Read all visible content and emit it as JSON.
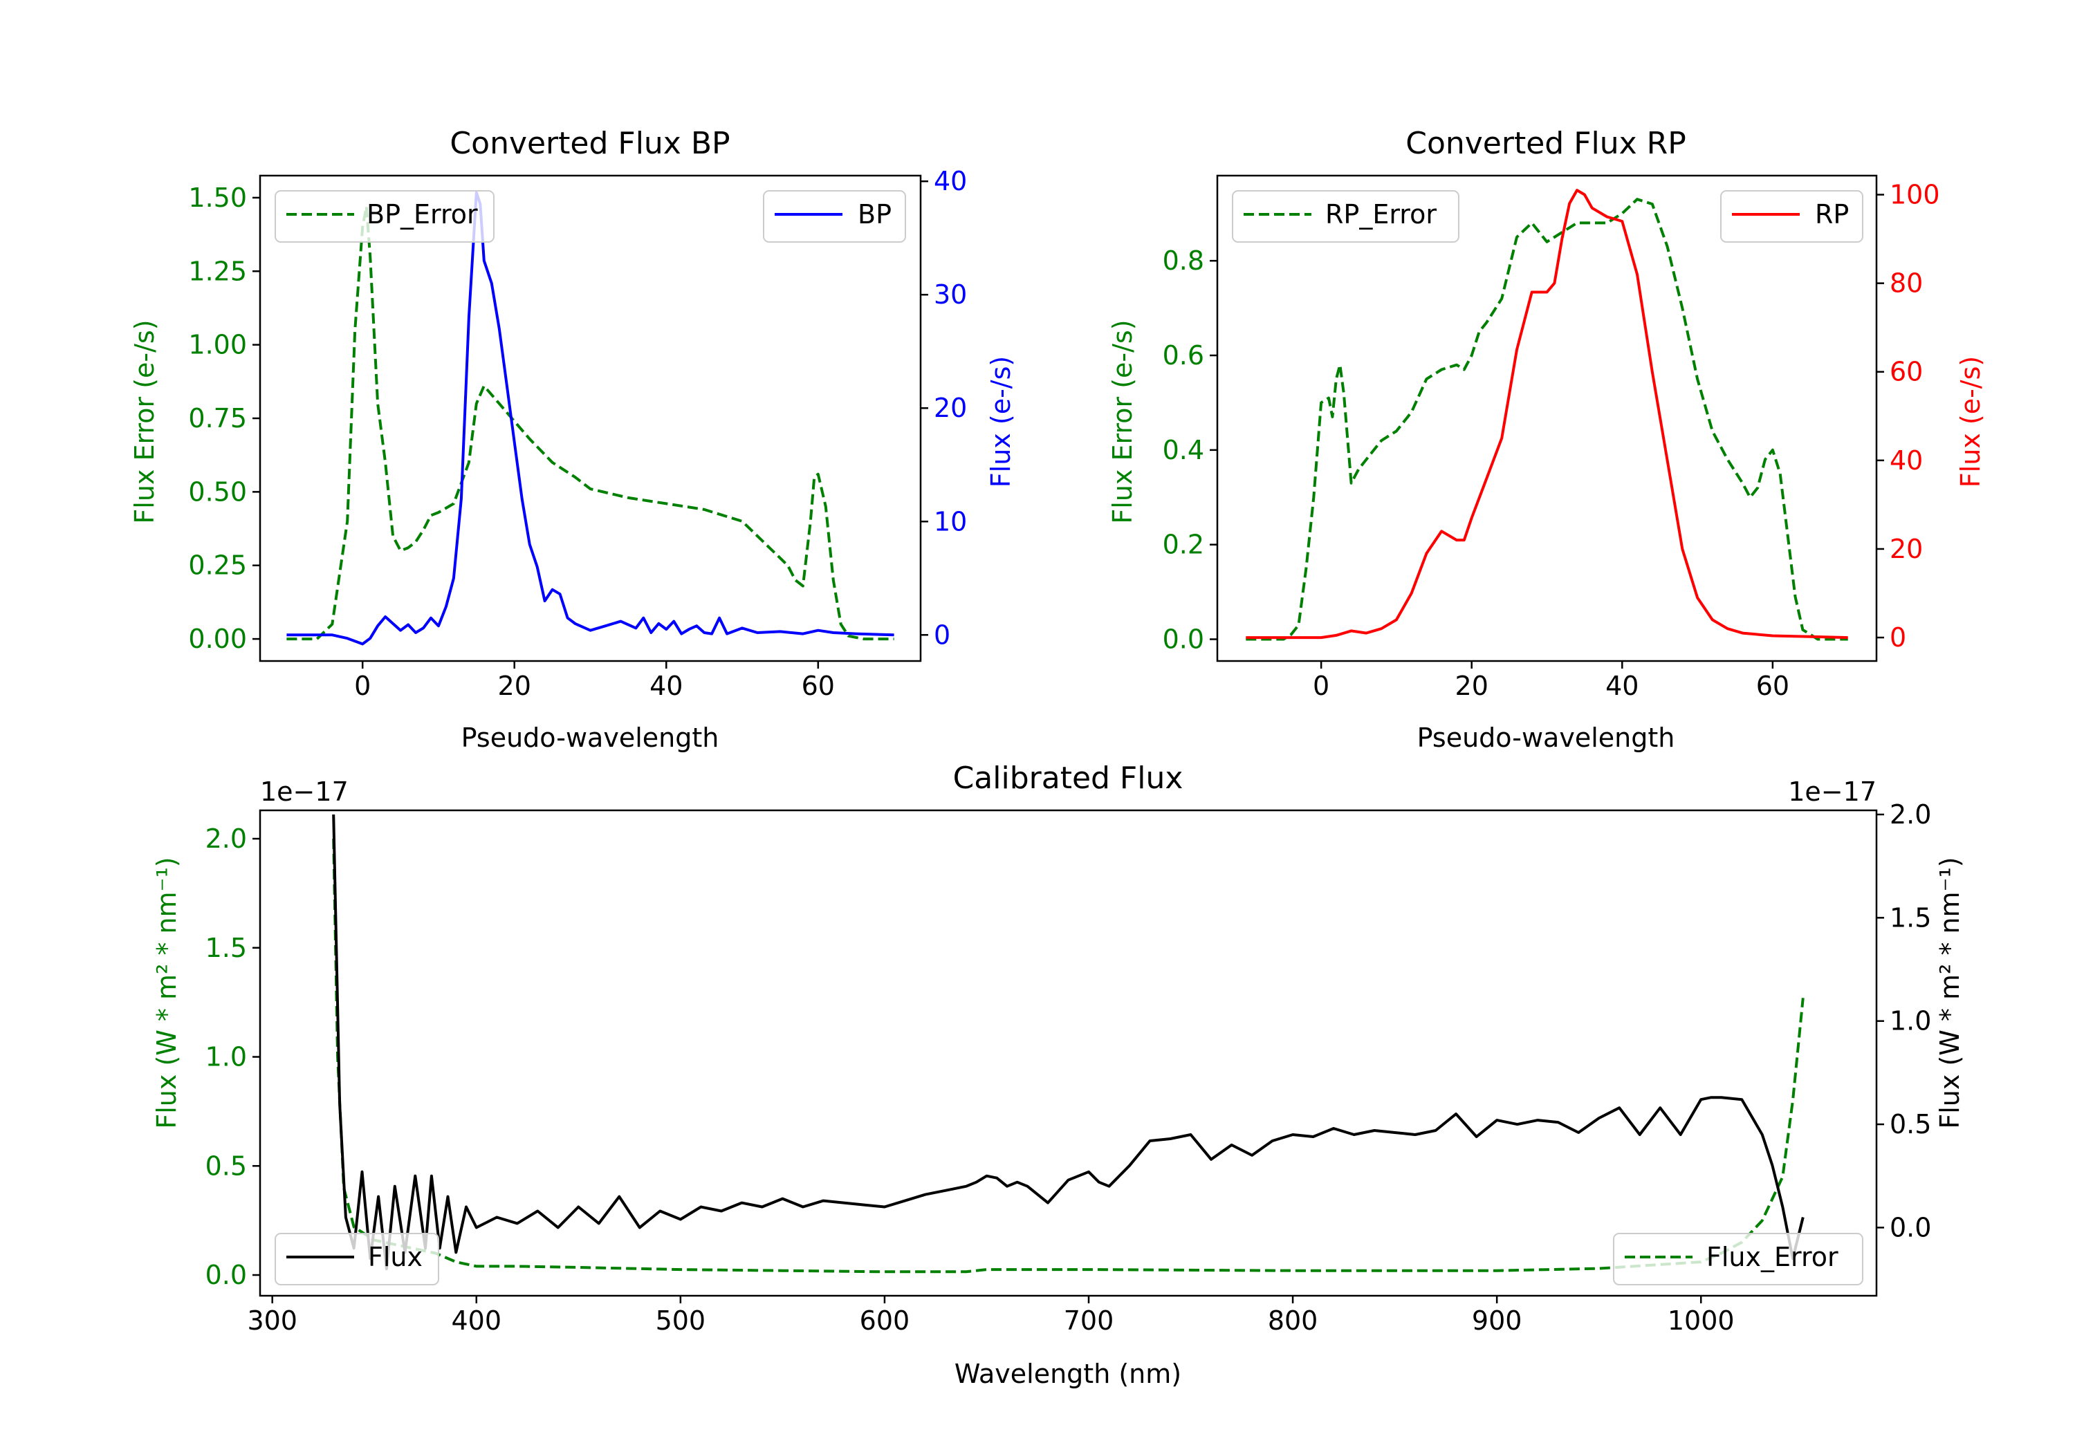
{
  "chart_data": [
    {
      "id": "bp",
      "type": "line",
      "title": "Converted Flux BP",
      "xlabel": "Pseudo-wavelength",
      "xlim": [
        -13.5,
        73.5
      ],
      "xticks": [
        0,
        20,
        40,
        60
      ],
      "left_axis": {
        "label": "Flux Error (e-/s)",
        "color": "#008000",
        "ylim": [
          -0.075,
          1.575
        ],
        "ticks": [
          0.0,
          0.25,
          0.5,
          0.75,
          1.0,
          1.25,
          1.5
        ],
        "tick_labels": [
          "0.00",
          "0.25",
          "0.50",
          "0.75",
          "1.00",
          "1.25",
          "1.50"
        ]
      },
      "right_axis": {
        "label": "Flux (e-/s)",
        "color": "#0000ff",
        "ylim": [
          -2.3,
          40.5
        ],
        "ticks": [
          0,
          10,
          20,
          30,
          40
        ],
        "tick_labels": [
          "0",
          "10",
          "20",
          "30",
          "40"
        ]
      },
      "series": [
        {
          "name": "BP_Error",
          "axis": "left",
          "color": "#008000",
          "style": "dashed",
          "x": [
            -10,
            -6,
            -4,
            -2,
            -1,
            0,
            0.5,
            1,
            2,
            3,
            4,
            5,
            6,
            7,
            8,
            9,
            10,
            12,
            14,
            15,
            16,
            18,
            20,
            22,
            25,
            28,
            30,
            35,
            40,
            45,
            50,
            54,
            56,
            57,
            58,
            59,
            59.5,
            60,
            61,
            62,
            63,
            64,
            66,
            70
          ],
          "values": [
            0.0,
            0.0,
            0.05,
            0.4,
            1.05,
            1.4,
            1.47,
            1.3,
            0.8,
            0.6,
            0.35,
            0.3,
            0.31,
            0.33,
            0.37,
            0.42,
            0.43,
            0.46,
            0.6,
            0.8,
            0.86,
            0.8,
            0.74,
            0.68,
            0.6,
            0.55,
            0.51,
            0.48,
            0.46,
            0.44,
            0.4,
            0.3,
            0.25,
            0.2,
            0.18,
            0.4,
            0.55,
            0.56,
            0.45,
            0.2,
            0.05,
            0.01,
            0.0,
            0.0
          ]
        },
        {
          "name": "BP",
          "axis": "right",
          "color": "#0000ff",
          "style": "solid",
          "x": [
            -10,
            -4,
            -2,
            0,
            1,
            2,
            3,
            4,
            5,
            6,
            7,
            8,
            9,
            10,
            11,
            12,
            13,
            14,
            15,
            15.5,
            16,
            17,
            18,
            19,
            20,
            21,
            22,
            23,
            24,
            25,
            26,
            27,
            28,
            30,
            32,
            34,
            36,
            37,
            38,
            39,
            40,
            41,
            42,
            43,
            44,
            45,
            46,
            47,
            48,
            50,
            52,
            55,
            58,
            60,
            62,
            65,
            70
          ],
          "values": [
            0,
            0,
            -0.3,
            -0.8,
            -0.3,
            0.8,
            1.6,
            1.0,
            0.4,
            0.9,
            0.2,
            0.6,
            1.5,
            0.8,
            2.5,
            5,
            12,
            28,
            39,
            38,
            33,
            31,
            27,
            22,
            17,
            12,
            8,
            6,
            3,
            4,
            3.6,
            1.5,
            1,
            0.4,
            0.8,
            1.2,
            0.6,
            1.5,
            0.2,
            1.0,
            0.5,
            1.2,
            0.1,
            0.5,
            0.8,
            0.2,
            0.1,
            1.5,
            0.1,
            0.6,
            0.2,
            0.3,
            0.1,
            0.4,
            0.2,
            0.1,
            0
          ]
        }
      ],
      "legends": [
        {
          "label": "BP_Error",
          "position": "upper left"
        },
        {
          "label": "BP",
          "position": "upper right"
        }
      ]
    },
    {
      "id": "rp",
      "type": "line",
      "title": "Converted Flux RP",
      "xlabel": "Pseudo-wavelength",
      "xlim": [
        -13.8,
        73.8
      ],
      "xticks": [
        0,
        20,
        40,
        60
      ],
      "left_axis": {
        "label": "Flux Error (e-/s)",
        "color": "#008000",
        "ylim": [
          -0.046,
          0.98
        ],
        "ticks": [
          0.0,
          0.2,
          0.4,
          0.6,
          0.8
        ],
        "tick_labels": [
          "0.0",
          "0.2",
          "0.4",
          "0.6",
          "0.8"
        ]
      },
      "right_axis": {
        "label": "Flux (e-/s)",
        "color": "#ff0000",
        "ylim": [
          -5.3,
          104.3
        ],
        "ticks": [
          0,
          20,
          40,
          60,
          80,
          100
        ],
        "tick_labels": [
          "0",
          "20",
          "40",
          "60",
          "80",
          "100"
        ]
      },
      "series": [
        {
          "name": "RP_Error",
          "axis": "left",
          "color": "#008000",
          "style": "dashed",
          "x": [
            -10,
            -5,
            -4,
            -3,
            -2,
            -1,
            0,
            1,
            1.5,
            2,
            2.5,
            3,
            4,
            5,
            6,
            7,
            8,
            9,
            10,
            12,
            14,
            16,
            18,
            19,
            20,
            21,
            22,
            24,
            26,
            28,
            30,
            32,
            34,
            36,
            38,
            40,
            42,
            44,
            46,
            48,
            50,
            52,
            54,
            56,
            57,
            58,
            59,
            60,
            61,
            62,
            63,
            64,
            66,
            70
          ],
          "values": [
            0.0,
            0.0,
            0.01,
            0.03,
            0.15,
            0.3,
            0.5,
            0.51,
            0.47,
            0.55,
            0.58,
            0.52,
            0.33,
            0.36,
            0.38,
            0.4,
            0.42,
            0.43,
            0.44,
            0.48,
            0.55,
            0.57,
            0.58,
            0.57,
            0.6,
            0.65,
            0.67,
            0.72,
            0.85,
            0.88,
            0.84,
            0.86,
            0.88,
            0.88,
            0.88,
            0.9,
            0.93,
            0.92,
            0.83,
            0.7,
            0.55,
            0.44,
            0.38,
            0.33,
            0.3,
            0.32,
            0.38,
            0.4,
            0.35,
            0.22,
            0.09,
            0.02,
            0.0,
            0.0
          ]
        },
        {
          "name": "RP",
          "axis": "right",
          "color": "#ff0000",
          "style": "solid",
          "x": [
            -10,
            0,
            2,
            4,
            6,
            8,
            10,
            12,
            14,
            16,
            18,
            19,
            20,
            22,
            24,
            26,
            28,
            30,
            31,
            32,
            33,
            34,
            35,
            36,
            38,
            40,
            42,
            44,
            46,
            48,
            50,
            52,
            54,
            56,
            60,
            65,
            70
          ],
          "values": [
            0,
            0,
            0.5,
            1.5,
            1,
            2,
            4,
            10,
            19,
            24,
            22,
            22,
            27,
            36,
            45,
            65,
            78,
            78,
            80,
            90,
            98,
            101,
            100,
            97,
            95,
            94,
            82,
            60,
            40,
            20,
            9,
            4,
            2,
            1,
            0.4,
            0.2,
            0
          ]
        }
      ],
      "legends": [
        {
          "label": "RP_Error",
          "position": "upper left"
        },
        {
          "label": "RP",
          "position": "upper right"
        }
      ]
    },
    {
      "id": "cal",
      "type": "line",
      "title": "Calibrated Flux",
      "xlabel": "Wavelength (nm)",
      "xlim": [
        294,
        1086
      ],
      "xticks": [
        300,
        400,
        500,
        600,
        700,
        800,
        900,
        1000
      ],
      "left_axis": {
        "label": "Flux (W * m² * nm⁻¹)",
        "color": "#008000",
        "offset_text": "1e−17",
        "ylim": [
          -0.095,
          2.13
        ],
        "ticks": [
          0.0,
          0.5,
          1.0,
          1.5,
          2.0
        ],
        "tick_labels": [
          "0.0",
          "0.5",
          "1.0",
          "1.5",
          "2.0"
        ]
      },
      "right_axis": {
        "label": "Flux (W * m² * nm⁻¹)",
        "color": "#000000",
        "offset_text": "1e−17",
        "ylim": [
          -0.33,
          2.02
        ],
        "ticks": [
          0.0,
          0.5,
          1.0,
          1.5,
          2.0
        ],
        "tick_labels": [
          "0.0",
          "0.5",
          "1.0",
          "1.5",
          "2.0"
        ]
      },
      "series": [
        {
          "name": "Flux_Error",
          "axis": "left",
          "color": "#008000",
          "style": "dashed",
          "x": [
            330,
            332,
            335,
            340,
            350,
            360,
            370,
            380,
            390,
            400,
            420,
            450,
            500,
            550,
            600,
            640,
            650,
            700,
            800,
            900,
            950,
            1000,
            1010,
            1020,
            1030,
            1040,
            1045,
            1050
          ],
          "values": [
            2.0,
            1.0,
            0.4,
            0.22,
            0.16,
            0.14,
            0.12,
            0.1,
            0.06,
            0.04,
            0.04,
            0.035,
            0.025,
            0.02,
            0.015,
            0.015,
            0.025,
            0.025,
            0.02,
            0.02,
            0.03,
            0.06,
            0.1,
            0.15,
            0.25,
            0.45,
            0.8,
            1.27
          ]
        },
        {
          "name": "Flux",
          "axis": "right",
          "color": "#000000",
          "style": "solid",
          "x": [
            330,
            333,
            336,
            340,
            344,
            348,
            352,
            356,
            360,
            365,
            370,
            375,
            378,
            382,
            386,
            390,
            395,
            400,
            410,
            420,
            430,
            440,
            450,
            460,
            470,
            480,
            490,
            500,
            510,
            520,
            530,
            540,
            550,
            560,
            570,
            580,
            590,
            600,
            610,
            620,
            630,
            640,
            645,
            650,
            655,
            660,
            665,
            670,
            680,
            690,
            700,
            705,
            710,
            720,
            730,
            740,
            750,
            760,
            770,
            780,
            790,
            800,
            810,
            820,
            830,
            840,
            850,
            860,
            870,
            880,
            890,
            900,
            910,
            920,
            930,
            940,
            950,
            960,
            970,
            980,
            990,
            1000,
            1005,
            1010,
            1020,
            1030,
            1035,
            1040,
            1045,
            1050
          ],
          "values": [
            2.0,
            0.6,
            0.05,
            -0.1,
            0.27,
            -0.15,
            0.15,
            -0.2,
            0.2,
            -0.12,
            0.25,
            -0.1,
            0.25,
            -0.1,
            0.15,
            -0.12,
            0.1,
            0.0,
            0.05,
            0.02,
            0.08,
            0.0,
            0.1,
            0.02,
            0.15,
            0.0,
            0.08,
            0.04,
            0.1,
            0.08,
            0.12,
            0.1,
            0.14,
            0.1,
            0.13,
            0.12,
            0.11,
            0.1,
            0.13,
            0.16,
            0.18,
            0.2,
            0.22,
            0.25,
            0.24,
            0.2,
            0.22,
            0.2,
            0.12,
            0.23,
            0.27,
            0.22,
            0.2,
            0.3,
            0.42,
            0.43,
            0.45,
            0.33,
            0.4,
            0.35,
            0.42,
            0.45,
            0.44,
            0.48,
            0.45,
            0.47,
            0.46,
            0.45,
            0.47,
            0.55,
            0.44,
            0.52,
            0.5,
            0.52,
            0.51,
            0.46,
            0.53,
            0.58,
            0.45,
            0.58,
            0.45,
            0.62,
            0.63,
            0.63,
            0.62,
            0.45,
            0.3,
            0.1,
            -0.15,
            0.05
          ]
        }
      ],
      "legends": [
        {
          "label": "Flux",
          "position": "lower left"
        },
        {
          "label": "Flux_Error",
          "position": "lower right"
        }
      ]
    }
  ]
}
